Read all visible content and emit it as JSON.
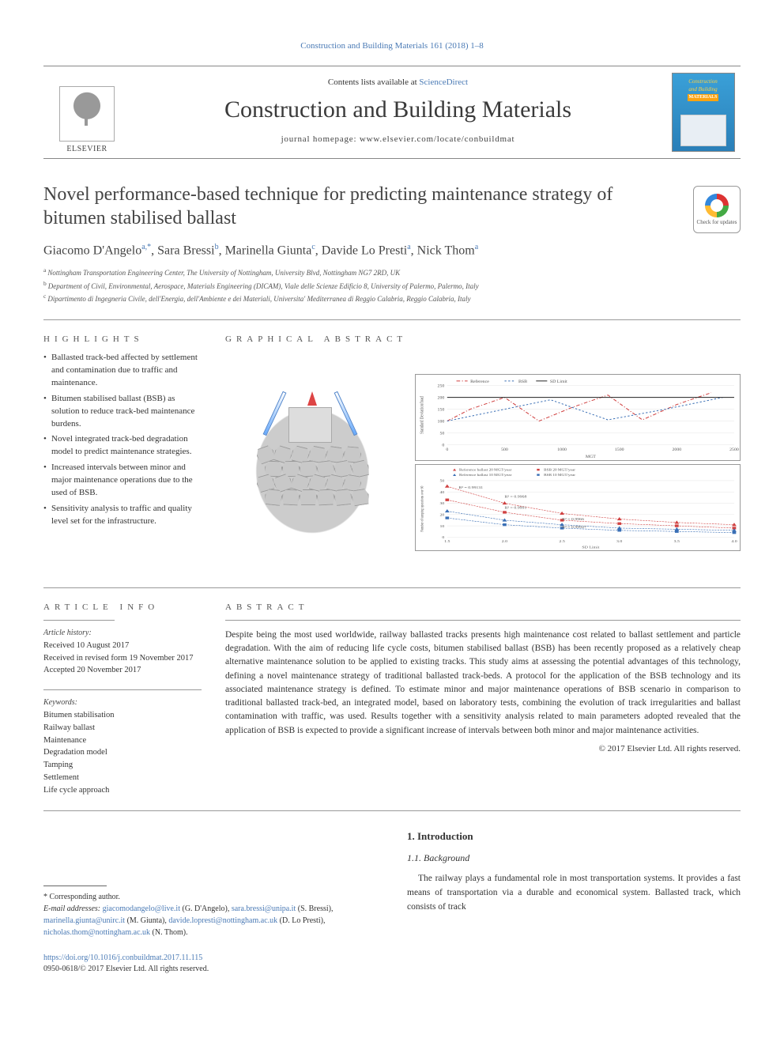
{
  "colors": {
    "link": "#4a7ab5",
    "page_bg": "#ffffff",
    "text": "#333333",
    "rule": "#999999",
    "cover_bg_top": "#3aa0d8",
    "cover_bg_bottom": "#2a7fb8",
    "cover_accent": "#ffd040",
    "cover_materials_bg": "#fca311",
    "crossmark_red": "#dd3333",
    "crossmark_green": "#44aa44",
    "crossmark_yellow": "#ffbb33",
    "crossmark_blue": "#3388dd",
    "ga_arrow": "#dd4444",
    "ga_pen": "#66aaff",
    "ga_stone": "#c8c8c8"
  },
  "typography": {
    "body_family": "Georgia, Times New Roman, serif",
    "journal_name_size": 30,
    "article_title_size": 24,
    "author_size": 16,
    "abstract_size": 11.5,
    "small_size": 10
  },
  "running_header": "Construction and Building Materials 161 (2018) 1–8",
  "masthead": {
    "publisher_logo_label": "ELSEVIER",
    "contents_prefix": "Contents lists available at ",
    "contents_link": "ScienceDirect",
    "journal_name": "Construction and Building Materials",
    "homepage_prefix": "journal homepage: ",
    "homepage_url": "www.elsevier.com/locate/conbuildmat",
    "cover_title_line1": "Construction",
    "cover_title_line2": "and Building",
    "cover_title_line3": "MATERIALS"
  },
  "article": {
    "title": "Novel performance-based technique for predicting maintenance strategy of bitumen stabilised ballast",
    "crossmark_label": "Check for updates"
  },
  "authors_line": "Giacomo D'Angelo ",
  "authors": [
    {
      "name": "Giacomo D'Angelo",
      "marks": "a,*"
    },
    {
      "name": "Sara Bressi",
      "marks": "b"
    },
    {
      "name": "Marinella Giunta",
      "marks": "c"
    },
    {
      "name": "Davide Lo Presti",
      "marks": "a"
    },
    {
      "name": "Nick Thom",
      "marks": "a"
    }
  ],
  "affiliations": [
    {
      "mark": "a",
      "text": "Nottingham Transportation Engineering Center, The University of Nottingham, University Blvd, Nottingham NG7 2RD, UK"
    },
    {
      "mark": "b",
      "text": "Department of Civil, Environmental, Aerospace, Materials Engineering (DICAM), Viale delle Scienze Edificio 8, University of Palermo, Palermo, Italy"
    },
    {
      "mark": "c",
      "text": "Dipartimento di Ingegneria Civile, dell'Energia, dell'Ambiente e dei Materiali, Universita' Mediterranea di Reggio Calabria, Reggio Calabria, Italy"
    }
  ],
  "sections": {
    "highlights_label": "HIGHLIGHTS",
    "graphical_label": "GRAPHICAL ABSTRACT",
    "article_info_label": "ARTICLE INFO",
    "abstract_label": "ABSTRACT"
  },
  "highlights": [
    "Ballasted track-bed affected by settlement and contamination due to traffic and maintenance.",
    "Bitumen stabilised ballast (BSB) as solution to reduce track-bed maintenance burdens.",
    "Novel integrated track-bed degradation model to predict maintenance strategies.",
    "Increased intervals between minor and major maintenance operations due to the used of BSB.",
    "Sensitivity analysis to traffic and quality level set for the infrastructure."
  ],
  "graphical_abstract": {
    "chart_top": {
      "type": "line",
      "title": "",
      "xlabel": "MGT",
      "ylabel": "Standard Deviation/load",
      "xlim": [
        0,
        2500
      ],
      "xtick_step": 500,
      "ylim": [
        0,
        250
      ],
      "ytick_step": 50,
      "background_color": "#ffffff",
      "grid_color": "#e0e0e0",
      "line_width": 1,
      "series": [
        {
          "name": "Reference",
          "color": "#d04040",
          "dash": "dashdot",
          "x": [
            0,
            200,
            500,
            800,
            1100,
            1400,
            1700,
            2000,
            2300
          ],
          "y": [
            100,
            150,
            200,
            100,
            160,
            210,
            105,
            170,
            220
          ]
        },
        {
          "name": "BSB",
          "color": "#3a6fb5",
          "dash": "dotted",
          "x": [
            0,
            400,
            900,
            1400,
            1900,
            2400
          ],
          "y": [
            100,
            140,
            190,
            105,
            150,
            200
          ]
        },
        {
          "name": "SD Limit",
          "color": "#222222",
          "dash": "solid",
          "x": [
            0,
            2500
          ],
          "y": [
            200,
            200
          ]
        }
      ],
      "legend_position": "top"
    },
    "chart_bottom": {
      "type": "scatter-fit",
      "xlabel": "SD Limit",
      "ylabel": "Number of tamping operations over 60",
      "xlim": [
        1.5,
        4.0
      ],
      "xtick_step": 0.5,
      "ylim": [
        0,
        50
      ],
      "ytick_step": 10,
      "background_color": "#ffffff",
      "grid_color": "#e0e0e0",
      "marker_size": 4,
      "series": [
        {
          "name": "Reference ballast 20 MGT/year",
          "color": "#d04040",
          "marker": "triangle",
          "x": [
            1.5,
            2.0,
            2.5,
            3.0,
            3.5,
            4.0
          ],
          "y": [
            45,
            30,
            21,
            16,
            13,
            11
          ],
          "r2_text": "R² = 0.9968",
          "r2_pos": [
            2.0,
            35
          ]
        },
        {
          "name": "BSB 20 MGT/year",
          "color": "#d04040",
          "marker": "square",
          "x": [
            1.5,
            2.0,
            2.5,
            3.0,
            3.5,
            4.0
          ],
          "y": [
            33,
            22,
            15,
            12,
            10,
            8
          ],
          "r2_text": "R² = 0.9991",
          "r2_pos": [
            2.0,
            25
          ]
        },
        {
          "name": "Reference ballast 10 MGT/year",
          "color": "#3a6fb5",
          "marker": "triangle",
          "x": [
            1.5,
            2.0,
            2.5,
            3.0,
            3.5,
            4.0
          ],
          "y": [
            23,
            15,
            11,
            8,
            7,
            6
          ],
          "r2_text": "R² = 0.9966",
          "r2_pos": [
            2.5,
            15
          ]
        },
        {
          "name": "BSB 10 MGT/year",
          "color": "#3a6fb5",
          "marker": "square",
          "x": [
            1.5,
            2.0,
            2.5,
            3.0,
            3.5,
            4.0
          ],
          "y": [
            17,
            11,
            8,
            6,
            5,
            4
          ],
          "r2_text": "R² = 0.99927",
          "r2_pos": [
            2.5,
            8
          ]
        }
      ],
      "fit_r2_final": "R² = 0.99131",
      "legend_position": "top"
    }
  },
  "article_info": {
    "history_label": "Article history:",
    "history": [
      "Received 10 August 2017",
      "Received in revised form 19 November 2017",
      "Accepted 20 November 2017"
    ],
    "keywords_label": "Keywords:",
    "keywords": [
      "Bitumen stabilisation",
      "Railway ballast",
      "Maintenance",
      "Degradation model",
      "Tamping",
      "Settlement",
      "Life cycle approach"
    ]
  },
  "abstract": "Despite being the most used worldwide, railway ballasted tracks presents high maintenance cost related to ballast settlement and particle degradation. With the aim of reducing life cycle costs, bitumen stabilised ballast (BSB) has been recently proposed as a relatively cheap alternative maintenance solution to be applied to existing tracks. This study aims at assessing the potential advantages of this technology, defining a novel maintenance strategy of traditional ballasted track-beds. A protocol for the application of the BSB technology and its associated maintenance strategy is defined. To estimate minor and major maintenance operations of BSB scenario in comparison to traditional ballasted track-bed, an integrated model, based on laboratory tests, combining the evolution of track irregularities and ballast contamination with traffic, was used. Results together with a sensitivity analysis related to main parameters adopted revealed that the application of BSB is expected to provide a significant increase of intervals between both minor and major maintenance activities.",
  "copyright": "© 2017 Elsevier Ltd. All rights reserved.",
  "body": {
    "h1": "1. Introduction",
    "h2": "1.1. Background",
    "p1": "The railway plays a fundamental role in most transportation systems. It provides a fast means of transportation via a durable and economical system. Ballasted track, which consists of track"
  },
  "footer": {
    "corresponding_label": "* Corresponding author.",
    "email_label": "E-mail addresses:",
    "emails": [
      {
        "addr": "giacomodangelo@live.it",
        "who": "(G. D'Angelo)"
      },
      {
        "addr": "sara.bressi@unipa.it",
        "who": "(S. Bressi)"
      },
      {
        "addr": "marinella.giunta@unirc.it",
        "who": "(M. Giunta)"
      },
      {
        "addr": "davide.lopresti@nottingham.ac.uk",
        "who": "(D. Lo Presti)"
      },
      {
        "addr": "nicholas.thom@nottingham.ac.uk",
        "who": "(N. Thom)"
      }
    ],
    "doi": "https://doi.org/10.1016/j.conbuildmat.2017.11.115",
    "issn_line": "0950-0618/© 2017 Elsevier Ltd. All rights reserved."
  }
}
